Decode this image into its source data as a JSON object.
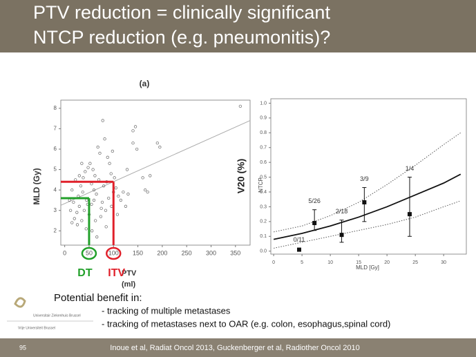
{
  "slide": {
    "title": [
      "PTV reduction = clinically significant",
      "NTCP reduction (e.g. pneumonitis)?"
    ],
    "benefit_heading": "Potential benefit in:",
    "bullets": [
      "- tracking of multiple metastases",
      "- tracking of metastases next to OAR (e.g. colon, esophagus,spinal cord)"
    ],
    "logos": [
      "Universitair Ziekenhuis Brussel",
      "Vrije Universiteit Brussel"
    ],
    "page_number": "95",
    "citation": "Inoue et al, Radiat Oncol 2013, Guckenberger et al, Radiother Oncol 2010"
  },
  "chart_data": [
    {
      "type": "scatter",
      "title": "(a)",
      "x_label": "PTV",
      "x_unit": "(ml)",
      "y_label": "MLD (Gy)",
      "color": "#666666",
      "x": [
        15,
        20,
        25,
        30,
        35,
        40,
        45,
        50,
        55,
        60,
        65,
        70,
        75,
        80,
        85,
        90,
        95,
        100,
        105,
        110,
        115,
        120,
        28,
        33,
        38,
        42,
        48,
        52,
        58,
        62,
        68,
        72,
        78,
        82,
        88,
        92,
        98,
        30,
        35,
        22,
        18,
        12,
        26,
        44,
        56,
        66,
        74,
        84,
        96,
        108,
        125,
        130,
        140,
        145,
        140,
        148,
        128,
        160,
        165,
        170,
        190,
        195,
        175,
        360,
        15,
        10,
        55,
        60,
        63,
        37,
        47,
        77,
        86,
        102
      ],
      "y": [
        2.4,
        2.6,
        2.9,
        3.2,
        2.5,
        3.0,
        3.5,
        2.8,
        3.3,
        4.0,
        3.8,
        4.5,
        3.1,
        4.2,
        2.2,
        3.6,
        4.8,
        3.9,
        4.1,
        3.7,
        3.5,
        3.9,
        3.7,
        4.2,
        4.6,
        4.9,
        5.1,
        5.3,
        5.0,
        4.7,
        6.1,
        5.8,
        7.4,
        6.5,
        5.6,
        5.3,
        5.9,
        4.7,
        5.3,
        4.5,
        3.4,
        3.0,
        2.3,
        2.1,
        2.0,
        1.7,
        2.7,
        3.0,
        3.2,
        2.8,
        3.2,
        3.8,
        6.9,
        7.1,
        6.3,
        6.0,
        5.0,
        4.6,
        4.0,
        3.9,
        6.3,
        6.1,
        4.7,
        8.1,
        4.0,
        3.5,
        4.3,
        3.5,
        2.5,
        3.9,
        3.3,
        3.4,
        4.4,
        4.6
      ],
      "fit_line": {
        "x": [
          -8,
          380
        ],
        "y": [
          3.25,
          7.4
        ],
        "color": "#aaaaaa"
      },
      "markers": [
        {
          "label": "DT",
          "x": 50,
          "y": 3.6,
          "color": "#22a02a"
        },
        {
          "label": "ITV",
          "x": 100,
          "y": 4.4,
          "color": "#e0202a"
        }
      ],
      "xlim": [
        -8,
        380
      ],
      "ylim": [
        1.3,
        8.4
      ],
      "xticks": [
        0,
        50,
        100,
        150,
        200,
        250,
        300,
        350
      ],
      "yticks": [
        2,
        3,
        4,
        5,
        6,
        7,
        8
      ]
    },
    {
      "type": "errorbar",
      "x_label": "MLD [Gy]",
      "y_label": "NTCP",
      "y_label_overlay": "V20  (%)",
      "color": "#111111",
      "x": [
        4.5,
        7.2,
        12,
        16,
        24
      ],
      "values": [
        0.01,
        0.19,
        0.11,
        0.33,
        0.25
      ],
      "low": [
        0.0,
        0.14,
        0.06,
        0.2,
        0.1
      ],
      "high": [
        0.02,
        0.28,
        0.21,
        0.43,
        0.5
      ],
      "point_labels": [
        "0/11",
        "5/26",
        "2/18",
        "3/9",
        "1/4"
      ],
      "fit_curve": {
        "x": [
          0,
          5,
          10,
          15,
          20,
          25,
          30,
          33
        ],
        "y": [
          0.08,
          0.12,
          0.17,
          0.23,
          0.3,
          0.38,
          0.46,
          0.52
        ]
      },
      "ci_upper": {
        "x": [
          0,
          5,
          10,
          15,
          20,
          25,
          30,
          33
        ],
        "y": [
          0.13,
          0.17,
          0.24,
          0.33,
          0.45,
          0.58,
          0.72,
          0.8
        ]
      },
      "ci_lower": {
        "x": [
          0,
          5,
          10,
          15,
          20,
          25,
          30,
          33
        ],
        "y": [
          0.02,
          0.06,
          0.1,
          0.14,
          0.18,
          0.23,
          0.3,
          0.34
        ]
      },
      "xlim": [
        -0.5,
        34
      ],
      "ylim": [
        -0.02,
        1.03
      ],
      "xticks": [
        0,
        5,
        10,
        15,
        20,
        25,
        30
      ],
      "yticks": [
        {
          "value": 0,
          "label": "0.0"
        },
        0.1,
        0.2,
        0.3,
        0.4,
        0.5,
        0.6,
        0.7,
        0.8,
        0.9,
        {
          "value": 1,
          "label": "1.0"
        }
      ]
    }
  ]
}
